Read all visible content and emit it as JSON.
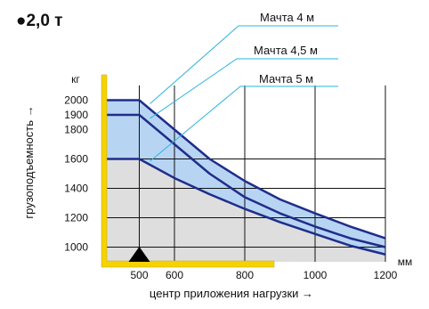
{
  "header": {
    "title": "●2,0 т"
  },
  "chart_data": {
    "type": "line",
    "title": "2,0 т",
    "xlabel": "центр приложения нагрузки →",
    "ylabel": "грузоподъемность →",
    "x_unit": "мм",
    "y_unit": "кг",
    "xlim": [
      400,
      1200
    ],
    "ylim": [
      900,
      2100
    ],
    "x_ticks": [
      500,
      600,
      800,
      1000,
      1200
    ],
    "y_ticks": [
      1000,
      1200,
      1400,
      1600,
      1800,
      1900,
      2000
    ],
    "grid": true,
    "series": [
      {
        "name": "Мачта 4 м",
        "x": [
          400,
          500,
          600,
          700,
          800,
          900,
          1000,
          1100,
          1200
        ],
        "y": [
          2000,
          2000,
          1800,
          1600,
          1450,
          1325,
          1230,
          1140,
          1060
        ]
      },
      {
        "name": "Мачта 4,5 м",
        "x": [
          400,
          500,
          600,
          700,
          800,
          900,
          1000,
          1100,
          1200
        ],
        "y": [
          1900,
          1900,
          1700,
          1500,
          1340,
          1230,
          1140,
          1060,
          1000
        ]
      },
      {
        "name": "Мачта 5 м",
        "x": [
          400,
          500,
          600,
          700,
          800,
          900,
          1000,
          1100,
          1200
        ],
        "y": [
          1600,
          1600,
          1470,
          1360,
          1260,
          1170,
          1090,
          1010,
          950
        ]
      }
    ],
    "marker_x": 500,
    "colors": {
      "curve": "#1f2d8a",
      "band": "#b8d4f3",
      "base": "#dedede",
      "mast_frame": "#f5d200",
      "leader": "#2bb3e0"
    }
  }
}
